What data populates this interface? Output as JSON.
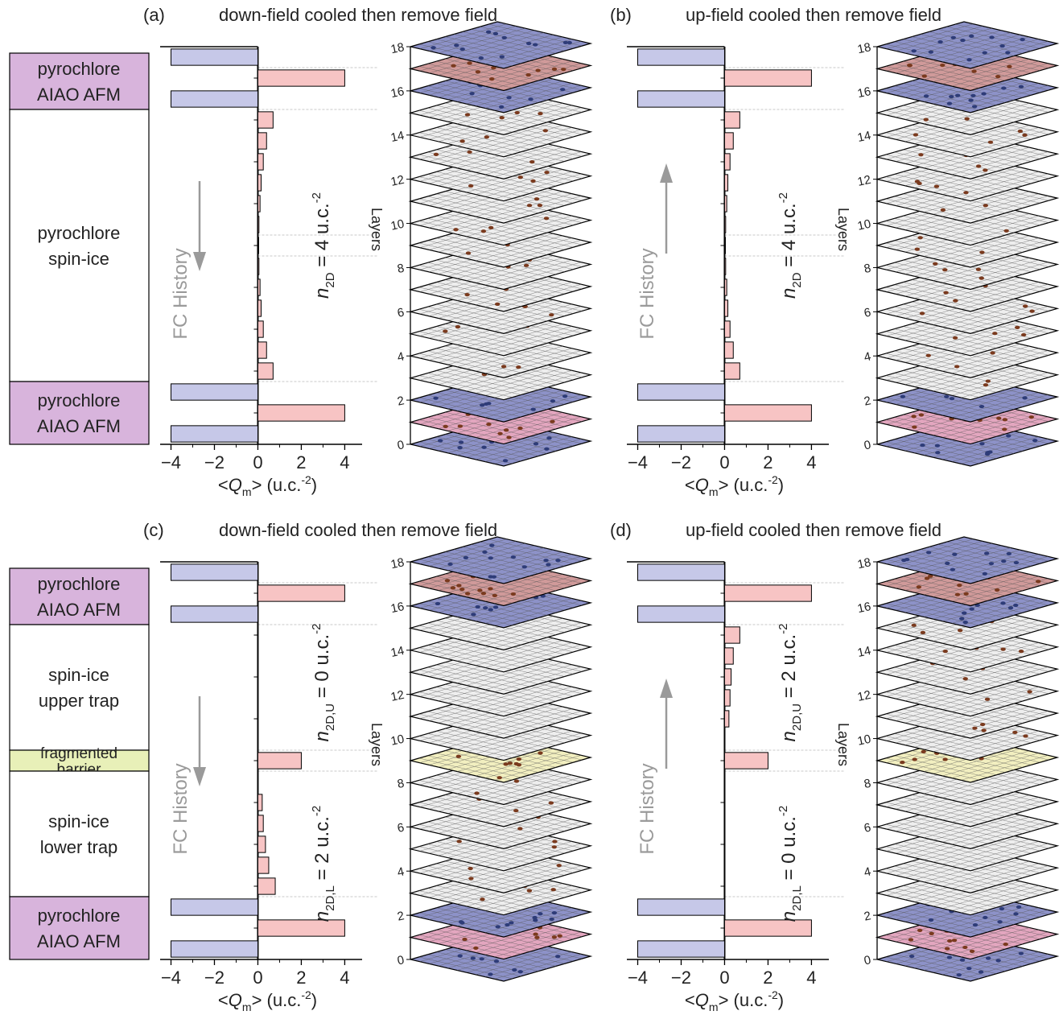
{
  "colors": {
    "afm_label": "#d8b4dc",
    "barrier_label": "#e8f0b8",
    "bar_negative": "#c6c8e8",
    "bar_positive": "#f7c4c4",
    "sheet_blue": "#8d92c8",
    "sheet_red": "#d09a9a",
    "sheet_pink": "#e3a6bf",
    "sheet_gray": "#eeeeee",
    "sheet_yellow": "#f2efc0",
    "dot_blue": "#2e3c78",
    "dot_brown": "#7a3a1e",
    "arrow": "#9a9a9a"
  },
  "panels": [
    {
      "letter": "(a)",
      "title": "down-field cooled then remove field",
      "history_label": "FC History",
      "arrow_direction": "down",
      "density_annotations": [
        {
          "main": "n",
          "sub": "2D",
          "rest": " = 4 u.c.",
          "sup": "-2"
        }
      ],
      "region_labels": [
        {
          "lines": [
            "pyrochlore",
            "AIAO AFM"
          ],
          "style": "afm",
          "layer_from": 15.5,
          "layer_to": 18.5
        },
        {
          "lines": [
            "pyrochlore",
            "spin-ice"
          ],
          "style": "plain",
          "layer_from": 2.5,
          "layer_to": 15.5
        },
        {
          "lines": [
            "pyrochlore",
            "AIAO AFM"
          ],
          "style": "afm",
          "layer_from": -0.5,
          "layer_to": 2.5
        }
      ]
    },
    {
      "letter": "(b)",
      "title": "up-field cooled then remove field",
      "history_label": "FC History",
      "arrow_direction": "up",
      "density_annotations": [
        {
          "main": "n",
          "sub": "2D",
          "rest": " = 4 u.c.",
          "sup": "-2"
        }
      ],
      "region_labels": []
    },
    {
      "letter": "(c)",
      "title": "down-field cooled then remove field",
      "history_label": "FC History",
      "arrow_direction": "down",
      "density_annotations": [
        {
          "main": "n",
          "sub": "2D,U",
          "rest": " = 0 u.c.",
          "sup": "-2"
        },
        {
          "main": "n",
          "sub": "2D,L",
          "rest": " = 2 u.c.",
          "sup": "-2"
        }
      ],
      "region_labels": [
        {
          "lines": [
            "pyrochlore",
            "AIAO AFM"
          ],
          "style": "afm",
          "layer_from": 15.5,
          "layer_to": 18.5
        },
        {
          "lines": [
            "spin-ice",
            "upper trap"
          ],
          "style": "plain",
          "layer_from": 9.5,
          "layer_to": 15.5
        },
        {
          "lines": [
            "fragmented",
            "barrier"
          ],
          "style": "barrier",
          "layer_from": 8.5,
          "layer_to": 9.5
        },
        {
          "lines": [
            "spin-ice",
            "lower trap"
          ],
          "style": "plain",
          "layer_from": 2.5,
          "layer_to": 8.5
        },
        {
          "lines": [
            "pyrochlore",
            "AIAO AFM"
          ],
          "style": "afm",
          "layer_from": -0.5,
          "layer_to": 2.5
        }
      ]
    },
    {
      "letter": "(d)",
      "title": "up-field cooled then remove field",
      "history_label": "FC History",
      "arrow_direction": "up",
      "density_annotations": [
        {
          "main": "n",
          "sub": "2D,U",
          "rest": " = 2 u.c.",
          "sup": "-2"
        },
        {
          "main": "n",
          "sub": "2D,L",
          "rest": " = 0 u.c.",
          "sup": "-2"
        }
      ],
      "region_labels": []
    }
  ],
  "chart_data": [
    {
      "panel": "(a)",
      "type": "bar",
      "orientation": "horizontal",
      "xlabel": {
        "pre": "<",
        "main": "Q",
        "sub": "m",
        "post": "> (u.c.",
        "sup": "-2",
        "end": ")"
      },
      "xticks": [
        -4,
        -2,
        0,
        2,
        4
      ],
      "xlim": [
        -4.5,
        4.8
      ],
      "ylim": [
        -0.5,
        18.5
      ],
      "layers": [
        0,
        1,
        2,
        3,
        4,
        5,
        6,
        7,
        8,
        9,
        10,
        11,
        12,
        13,
        14,
        15,
        16,
        17,
        18
      ],
      "values": [
        -4,
        4,
        -4,
        0.7,
        0.4,
        0.25,
        0.15,
        0.1,
        0.05,
        0.03,
        0.05,
        0.1,
        0.15,
        0.25,
        0.4,
        0.7,
        -4,
        4,
        -4
      ],
      "stack": {
        "ylabel": "Layers",
        "yticks": [
          0,
          2,
          4,
          6,
          8,
          10,
          12,
          14,
          16,
          18
        ],
        "sheet_types": [
          "blue",
          "pink",
          "blue",
          "gray",
          "gray",
          "gray",
          "gray",
          "gray",
          "gray",
          "gray",
          "gray",
          "gray",
          "gray",
          "gray",
          "gray",
          "gray",
          "blue",
          "red",
          "blue"
        ],
        "monopoles_per_sheet": [
          12,
          12,
          12,
          4,
          4,
          4,
          4,
          4,
          4,
          4,
          4,
          4,
          4,
          4,
          4,
          4,
          12,
          12,
          12
        ]
      }
    },
    {
      "panel": "(b)",
      "type": "bar",
      "orientation": "horizontal",
      "xlabel": {
        "pre": "<",
        "main": "Q",
        "sub": "m",
        "post": "> (u.c.",
        "sup": "-2",
        "end": ")"
      },
      "xticks": [
        -4,
        -2,
        0,
        2,
        4
      ],
      "xlim": [
        -4.5,
        4.8
      ],
      "ylim": [
        -0.5,
        18.5
      ],
      "layers": [
        0,
        1,
        2,
        3,
        4,
        5,
        6,
        7,
        8,
        9,
        10,
        11,
        12,
        13,
        14,
        15,
        16,
        17,
        18
      ],
      "values": [
        -4,
        4,
        -4,
        0.7,
        0.4,
        0.25,
        0.15,
        0.1,
        0.05,
        0.03,
        0.05,
        0.1,
        0.15,
        0.25,
        0.4,
        0.7,
        -4,
        4,
        -4
      ],
      "stack": {
        "ylabel": "Layers",
        "yticks": [
          0,
          2,
          4,
          6,
          8,
          10,
          12,
          14,
          16,
          18
        ],
        "sheet_types": [
          "blue",
          "pink",
          "blue",
          "gray",
          "gray",
          "gray",
          "gray",
          "gray",
          "gray",
          "gray",
          "gray",
          "gray",
          "gray",
          "gray",
          "gray",
          "gray",
          "blue",
          "red",
          "blue"
        ],
        "monopoles_per_sheet": [
          12,
          12,
          12,
          4,
          4,
          4,
          4,
          4,
          4,
          4,
          4,
          4,
          4,
          4,
          4,
          4,
          12,
          12,
          12
        ]
      }
    },
    {
      "panel": "(c)",
      "type": "bar",
      "orientation": "horizontal",
      "xlabel": {
        "pre": "<",
        "main": "Q",
        "sub": "m",
        "post": "> (u.c.",
        "sup": "-2",
        "end": ")"
      },
      "xticks": [
        -4,
        -2,
        0,
        2,
        4
      ],
      "xlim": [
        -4.5,
        4.8
      ],
      "ylim": [
        -0.5,
        18.5
      ],
      "layers": [
        0,
        1,
        2,
        3,
        4,
        5,
        6,
        7,
        8,
        9,
        10,
        11,
        12,
        13,
        14,
        15,
        16,
        17,
        18
      ],
      "values": [
        -4,
        4,
        -4,
        0.8,
        0.5,
        0.35,
        0.25,
        0.2,
        0,
        2,
        0,
        0,
        0,
        0,
        0,
        0,
        -4,
        4,
        -4
      ],
      "stack": {
        "ylabel": "Layers",
        "yticks": [
          0,
          2,
          4,
          6,
          8,
          10,
          12,
          14,
          16,
          18
        ],
        "sheet_types": [
          "blue",
          "pink",
          "blue",
          "gray",
          "gray",
          "gray",
          "gray",
          "gray",
          "gray",
          "yellow",
          "gray",
          "gray",
          "gray",
          "gray",
          "gray",
          "gray",
          "blue",
          "red",
          "blue"
        ],
        "monopoles_per_sheet": [
          12,
          12,
          12,
          4,
          4,
          4,
          3,
          3,
          2,
          10,
          0,
          0,
          0,
          0,
          0,
          0,
          12,
          12,
          12
        ]
      }
    },
    {
      "panel": "(d)",
      "type": "bar",
      "orientation": "horizontal",
      "xlabel": {
        "pre": "<",
        "main": "Q",
        "sub": "m",
        "post": "> (u.c.",
        "sup": "-2",
        "end": ")"
      },
      "xticks": [
        -4,
        -2,
        0,
        2,
        4
      ],
      "xlim": [
        -4.5,
        4.8
      ],
      "ylim": [
        -0.5,
        18.5
      ],
      "layers": [
        0,
        1,
        2,
        3,
        4,
        5,
        6,
        7,
        8,
        9,
        10,
        11,
        12,
        13,
        14,
        15,
        16,
        17,
        18
      ],
      "values": [
        -4,
        4,
        -4,
        0,
        0,
        0,
        0,
        0,
        0,
        2,
        0,
        0.2,
        0.25,
        0.3,
        0.4,
        0.7,
        -4,
        4,
        -4
      ],
      "stack": {
        "ylabel": "Layers",
        "yticks": [
          0,
          2,
          4,
          6,
          8,
          10,
          12,
          14,
          16,
          18
        ],
        "sheet_types": [
          "blue",
          "pink",
          "blue",
          "gray",
          "gray",
          "gray",
          "gray",
          "gray",
          "gray",
          "yellow",
          "gray",
          "gray",
          "gray",
          "gray",
          "gray",
          "gray",
          "blue",
          "red",
          "blue"
        ],
        "monopoles_per_sheet": [
          12,
          12,
          12,
          0,
          0,
          0,
          0,
          0,
          0,
          10,
          2,
          3,
          3,
          4,
          4,
          4,
          12,
          12,
          12
        ]
      }
    }
  ]
}
